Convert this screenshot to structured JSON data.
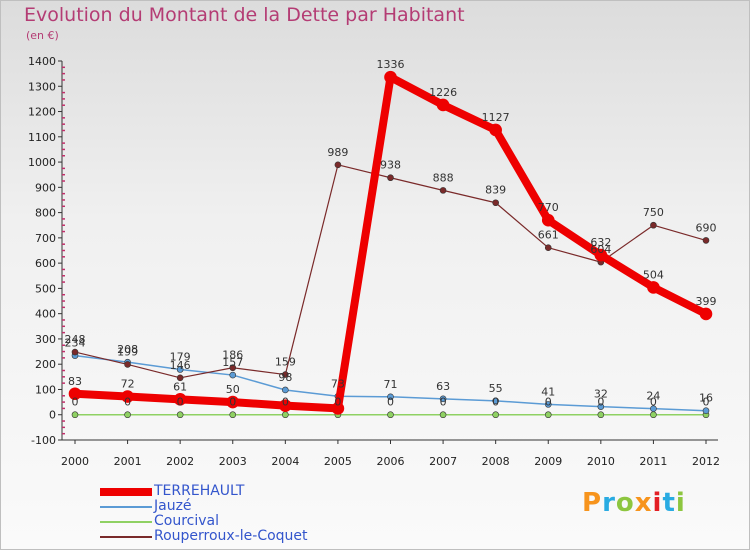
{
  "title": "Evolution du Montant de la Dette par Habitant",
  "subtitle": "(en €)",
  "logo": {
    "text": "Proxiti",
    "colors": [
      "#f7941d",
      "#29abe2",
      "#8dc63f",
      "#f7941d",
      "#e31e24",
      "#29abe2",
      "#8dc63f"
    ]
  },
  "chart_data": {
    "type": "line",
    "title": "Evolution du Montant de la Dette par Habitant",
    "subtitle": "(en €)",
    "xlabel": "",
    "ylabel": "",
    "ylim": [
      -100,
      1400
    ],
    "yticks": [
      -100,
      0,
      100,
      200,
      300,
      400,
      500,
      600,
      700,
      800,
      900,
      1000,
      1100,
      1200,
      1300,
      1400
    ],
    "x": [
      "2000",
      "2001",
      "2002",
      "2003",
      "2004",
      "2005",
      "2006",
      "2007",
      "2008",
      "2009",
      "2010",
      "2011",
      "2012"
    ],
    "grid": false,
    "legend_position": "bottom-left",
    "series": [
      {
        "name": "TERREHAULT",
        "color": "#ee0000",
        "values": [
          83,
          72,
          61,
          50,
          36,
          25,
          1336,
          1226,
          1127,
          770,
          632,
          504,
          399
        ]
      },
      {
        "name": "Jauzé",
        "color": "#5b9bd5",
        "values": [
          234,
          208,
          179,
          157,
          98,
          73,
          71,
          63,
          55,
          41,
          32,
          24,
          16
        ]
      },
      {
        "name": "Courcival",
        "color": "#8fd163",
        "values": [
          0,
          0,
          0,
          0,
          0,
          0,
          0,
          0,
          0,
          0,
          0,
          0,
          0
        ]
      },
      {
        "name": "Rouperroux-le-Coquet",
        "color": "#7a2a2a",
        "values": [
          248,
          199,
          146,
          186,
          159,
          989,
          938,
          888,
          839,
          661,
          604,
          750,
          690
        ]
      }
    ],
    "data_labels": [
      {
        "series": 0,
        "values": [
          "83",
          "72",
          "61",
          "50",
          "",
          "",
          "1336",
          "1226",
          "1127",
          "770",
          "632",
          "504",
          "399"
        ]
      },
      {
        "series": 1,
        "values": [
          "234",
          "208",
          "179",
          "157",
          "98",
          "73",
          "71",
          "63",
          "55",
          "41",
          "32",
          "24",
          "16"
        ]
      },
      {
        "series": 2,
        "values": [
          "0",
          "0",
          "0",
          "0",
          "0",
          "0",
          "0",
          "0",
          "0",
          "0",
          "0",
          "0",
          "0"
        ]
      },
      {
        "series": 3,
        "values": [
          "248",
          "199",
          "146",
          "186",
          "159",
          "989",
          "938",
          "888",
          "839",
          "661",
          "604",
          "750",
          "690"
        ]
      }
    ]
  }
}
